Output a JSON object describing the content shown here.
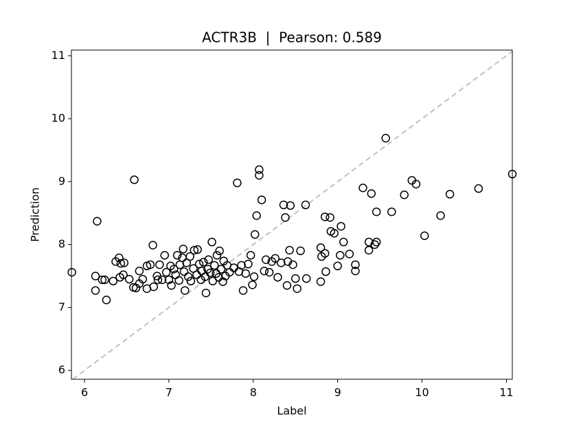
{
  "chart_data": {
    "type": "scatter",
    "title": "ACTR3B  |  Pearson: 0.589",
    "x_label": "Label",
    "y_label": "Prediction",
    "xlim": [
      5.845,
      11.07
    ],
    "ylim": [
      5.86,
      11.09
    ],
    "xticks": [
      6,
      7,
      8,
      9,
      10,
      11
    ],
    "yticks": [
      6,
      7,
      8,
      9,
      10,
      11
    ],
    "marker_color": "#000000",
    "identity_line_color": "#c0c0c0",
    "x": [
      5.85,
      6.15,
      6.59,
      6.13,
      6.13,
      6.21,
      6.24,
      6.26,
      6.34,
      6.37,
      6.41,
      6.43,
      6.47,
      6.42,
      6.46,
      6.53,
      6.58,
      6.61,
      6.65,
      6.65,
      6.69,
      6.74,
      6.74,
      6.78,
      6.81,
      6.82,
      6.86,
      6.87,
      6.89,
      6.92,
      6.95,
      6.97,
      7.0,
      7.02,
      7.03,
      7.06,
      7.08,
      7.1,
      7.12,
      7.13,
      7.16,
      7.17,
      7.18,
      7.19,
      7.21,
      7.23,
      7.25,
      7.26,
      7.29,
      7.3,
      7.33,
      7.34,
      7.36,
      7.38,
      7.39,
      7.41,
      7.43,
      7.44,
      7.46,
      7.47,
      7.49,
      7.51,
      7.52,
      7.54,
      7.56,
      7.57,
      7.59,
      7.6,
      7.62,
      7.64,
      7.65,
      7.67,
      7.69,
      7.72,
      7.77,
      7.81,
      7.83,
      7.86,
      7.88,
      7.91,
      7.94,
      7.97,
      7.99,
      8.01,
      8.02,
      8.04,
      8.07,
      8.07,
      8.1,
      8.13,
      8.15,
      8.19,
      8.22,
      8.26,
      8.29,
      8.33,
      8.36,
      8.38,
      8.4,
      8.41,
      8.43,
      8.44,
      8.47,
      8.5,
      8.52,
      8.56,
      8.62,
      8.63,
      8.8,
      8.8,
      8.81,
      8.85,
      8.85,
      8.86,
      8.91,
      8.92,
      8.96,
      9.0,
      9.03,
      9.04,
      9.07,
      9.14,
      9.21,
      9.21,
      9.3,
      9.37,
      9.37,
      9.4,
      9.44,
      9.46,
      9.46,
      9.57,
      9.64,
      9.79,
      9.88,
      9.93,
      10.03,
      10.22,
      10.33,
      10.67,
      11.07
    ],
    "values": [
      7.56,
      8.37,
      9.03,
      7.5,
      7.27,
      7.44,
      7.44,
      7.12,
      7.42,
      7.73,
      7.79,
      7.7,
      7.71,
      7.48,
      7.52,
      7.45,
      7.32,
      7.31,
      7.38,
      7.58,
      7.45,
      7.3,
      7.66,
      7.68,
      7.99,
      7.33,
      7.5,
      7.44,
      7.68,
      7.44,
      7.83,
      7.56,
      7.44,
      7.66,
      7.35,
      7.61,
      7.52,
      7.83,
      7.43,
      7.68,
      7.79,
      7.93,
      7.57,
      7.27,
      7.71,
      7.49,
      7.81,
      7.42,
      7.62,
      7.91,
      7.52,
      7.92,
      7.69,
      7.44,
      7.58,
      7.72,
      7.49,
      7.23,
      7.61,
      7.76,
      7.55,
      8.04,
      7.42,
      7.67,
      7.54,
      7.83,
      7.48,
      7.9,
      7.61,
      7.41,
      7.74,
      7.5,
      7.67,
      7.56,
      7.63,
      8.98,
      7.57,
      7.67,
      7.27,
      7.54,
      7.69,
      7.83,
      7.36,
      7.49,
      8.16,
      8.46,
      9.19,
      9.1,
      8.71,
      7.58,
      7.76,
      7.56,
      7.73,
      7.78,
      7.48,
      7.71,
      8.63,
      8.43,
      7.35,
      7.73,
      7.91,
      8.62,
      7.68,
      7.46,
      7.3,
      7.9,
      8.63,
      7.46,
      7.41,
      7.95,
      7.81,
      8.44,
      7.86,
      7.57,
      8.43,
      8.21,
      8.18,
      7.66,
      7.83,
      8.29,
      8.04,
      7.85,
      7.68,
      7.58,
      8.9,
      8.04,
      7.91,
      8.81,
      8.0,
      8.04,
      8.52,
      9.69,
      8.52,
      8.79,
      9.02,
      8.96,
      8.14,
      8.46,
      8.8,
      8.89,
      9.12
    ]
  }
}
